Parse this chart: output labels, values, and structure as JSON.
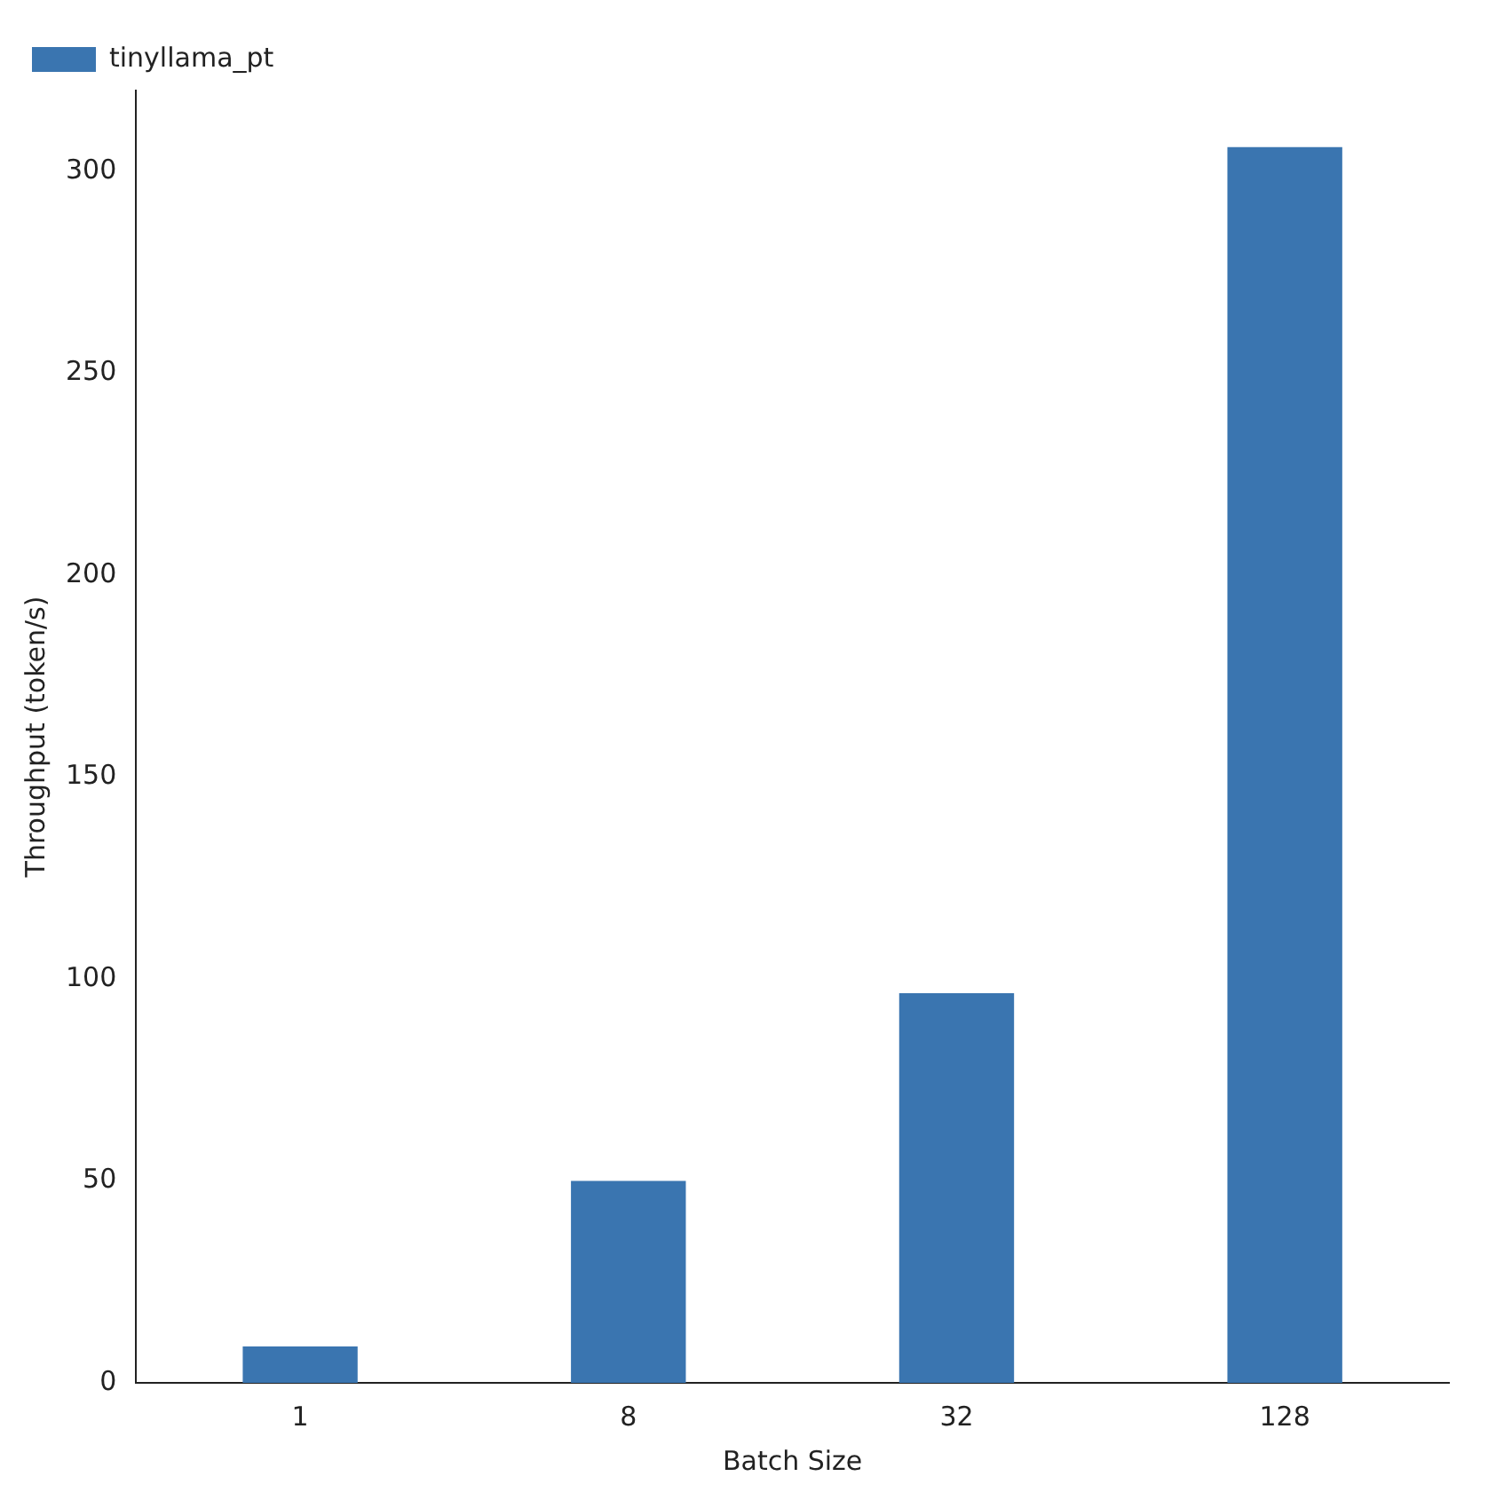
{
  "chart_data": {
    "type": "bar",
    "xlabel": "Batch Size",
    "ylabel": "Throughput (token/s)",
    "categories": [
      "1",
      "8",
      "32",
      "128"
    ],
    "series": [
      {
        "name": "tinyllama_pt",
        "color": "#3a75b0",
        "values": [
          9,
          50,
          96.5,
          306
        ]
      }
    ],
    "ylim": [
      0,
      320
    ],
    "yticks": [
      0,
      50,
      100,
      150,
      200,
      250,
      300
    ],
    "grid": false,
    "legend": "top left"
  }
}
